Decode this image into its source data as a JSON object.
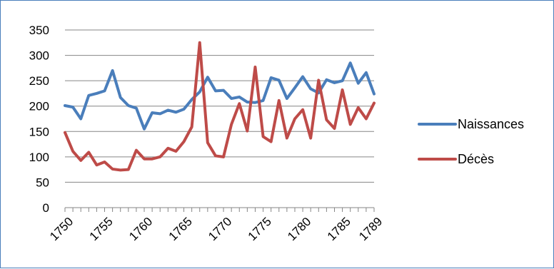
{
  "chart_data": {
    "type": "line",
    "title": "",
    "xlabel": "",
    "ylabel": "",
    "ylim": [
      0,
      350
    ],
    "yticks": [
      0,
      50,
      100,
      150,
      200,
      250,
      300,
      350
    ],
    "x": [
      1750,
      1751,
      1752,
      1753,
      1754,
      1755,
      1756,
      1757,
      1758,
      1759,
      1760,
      1761,
      1762,
      1763,
      1764,
      1765,
      1766,
      1767,
      1768,
      1769,
      1770,
      1771,
      1772,
      1773,
      1774,
      1775,
      1776,
      1777,
      1778,
      1779,
      1780,
      1781,
      1782,
      1783,
      1784,
      1785,
      1786,
      1787,
      1788,
      1789
    ],
    "xtick_labels": [
      "1750",
      "1755",
      "1760",
      "1765",
      "1770",
      "1775",
      "1780",
      "1785",
      "1789"
    ],
    "grid": true,
    "legend_position": "right",
    "series": [
      {
        "name": "Naissances",
        "color": "#4a7ebb",
        "values": [
          201,
          198,
          175,
          221,
          225,
          230,
          270,
          217,
          201,
          196,
          155,
          187,
          185,
          192,
          188,
          194,
          213,
          228,
          257,
          230,
          231,
          215,
          218,
          208,
          207,
          211,
          256,
          251,
          215,
          236,
          258,
          234,
          226,
          252,
          246,
          250,
          285,
          245,
          266,
          224
        ]
      },
      {
        "name": "Décès",
        "color": "#be4b48",
        "values": [
          148,
          111,
          93,
          109,
          84,
          90,
          76,
          74,
          75,
          113,
          96,
          96,
          100,
          117,
          111,
          130,
          159,
          325,
          128,
          102,
          100,
          164,
          205,
          151,
          277,
          140,
          130,
          211,
          137,
          175,
          193,
          137,
          251,
          173,
          156,
          232,
          164,
          197,
          175,
          206
        ]
      }
    ]
  }
}
